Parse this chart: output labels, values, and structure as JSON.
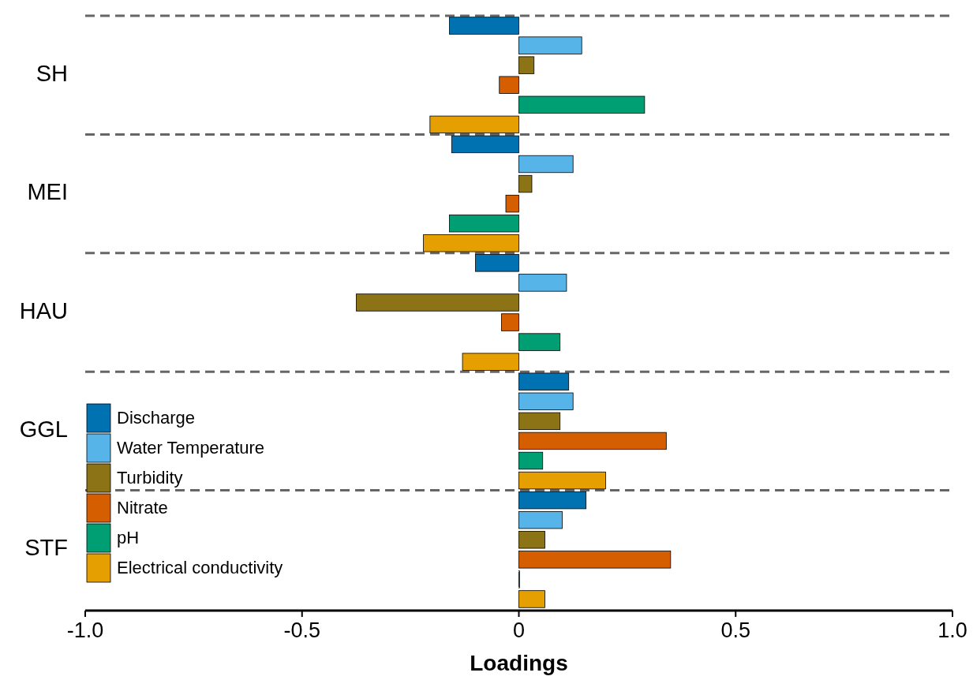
{
  "chart_data": {
    "type": "bar",
    "orientation": "horizontal",
    "xlabel": "Loadings",
    "categories": [
      "SH",
      "MEI",
      "HAU",
      "GGL",
      "STF"
    ],
    "series": [
      {
        "name": "Discharge",
        "color": "#0072b2",
        "values": [
          -0.16,
          -0.155,
          -0.1,
          0.115,
          0.155
        ]
      },
      {
        "name": "Water Temperature",
        "color": "#56b4e9",
        "values": [
          0.145,
          0.125,
          0.11,
          0.125,
          0.1
        ]
      },
      {
        "name": "Turbidity",
        "color": "#8b7316",
        "values": [
          0.035,
          0.03,
          -0.375,
          0.095,
          0.06
        ]
      },
      {
        "name": "Nitrate",
        "color": "#d55e00",
        "values": [
          -0.045,
          -0.03,
          -0.04,
          0.34,
          0.35
        ]
      },
      {
        "name": "pH",
        "color": "#009e73",
        "values": [
          0.29,
          -0.16,
          0.095,
          0.055,
          0.0
        ]
      },
      {
        "name": "Electrical conductivity",
        "color": "#e69f00",
        "values": [
          -0.205,
          -0.22,
          -0.13,
          0.2,
          0.06
        ]
      }
    ],
    "xlim": [
      -1.0,
      1.0
    ],
    "xticks": [
      {
        "value": -1,
        "label": "-1.0"
      },
      {
        "value": -0.5,
        "label": "-0.5"
      },
      0,
      {
        "value": 0.5,
        "label": "0.5"
      },
      {
        "value": 1,
        "label": "1.0"
      }
    ],
    "grid": "y",
    "legend": "bottom left"
  }
}
